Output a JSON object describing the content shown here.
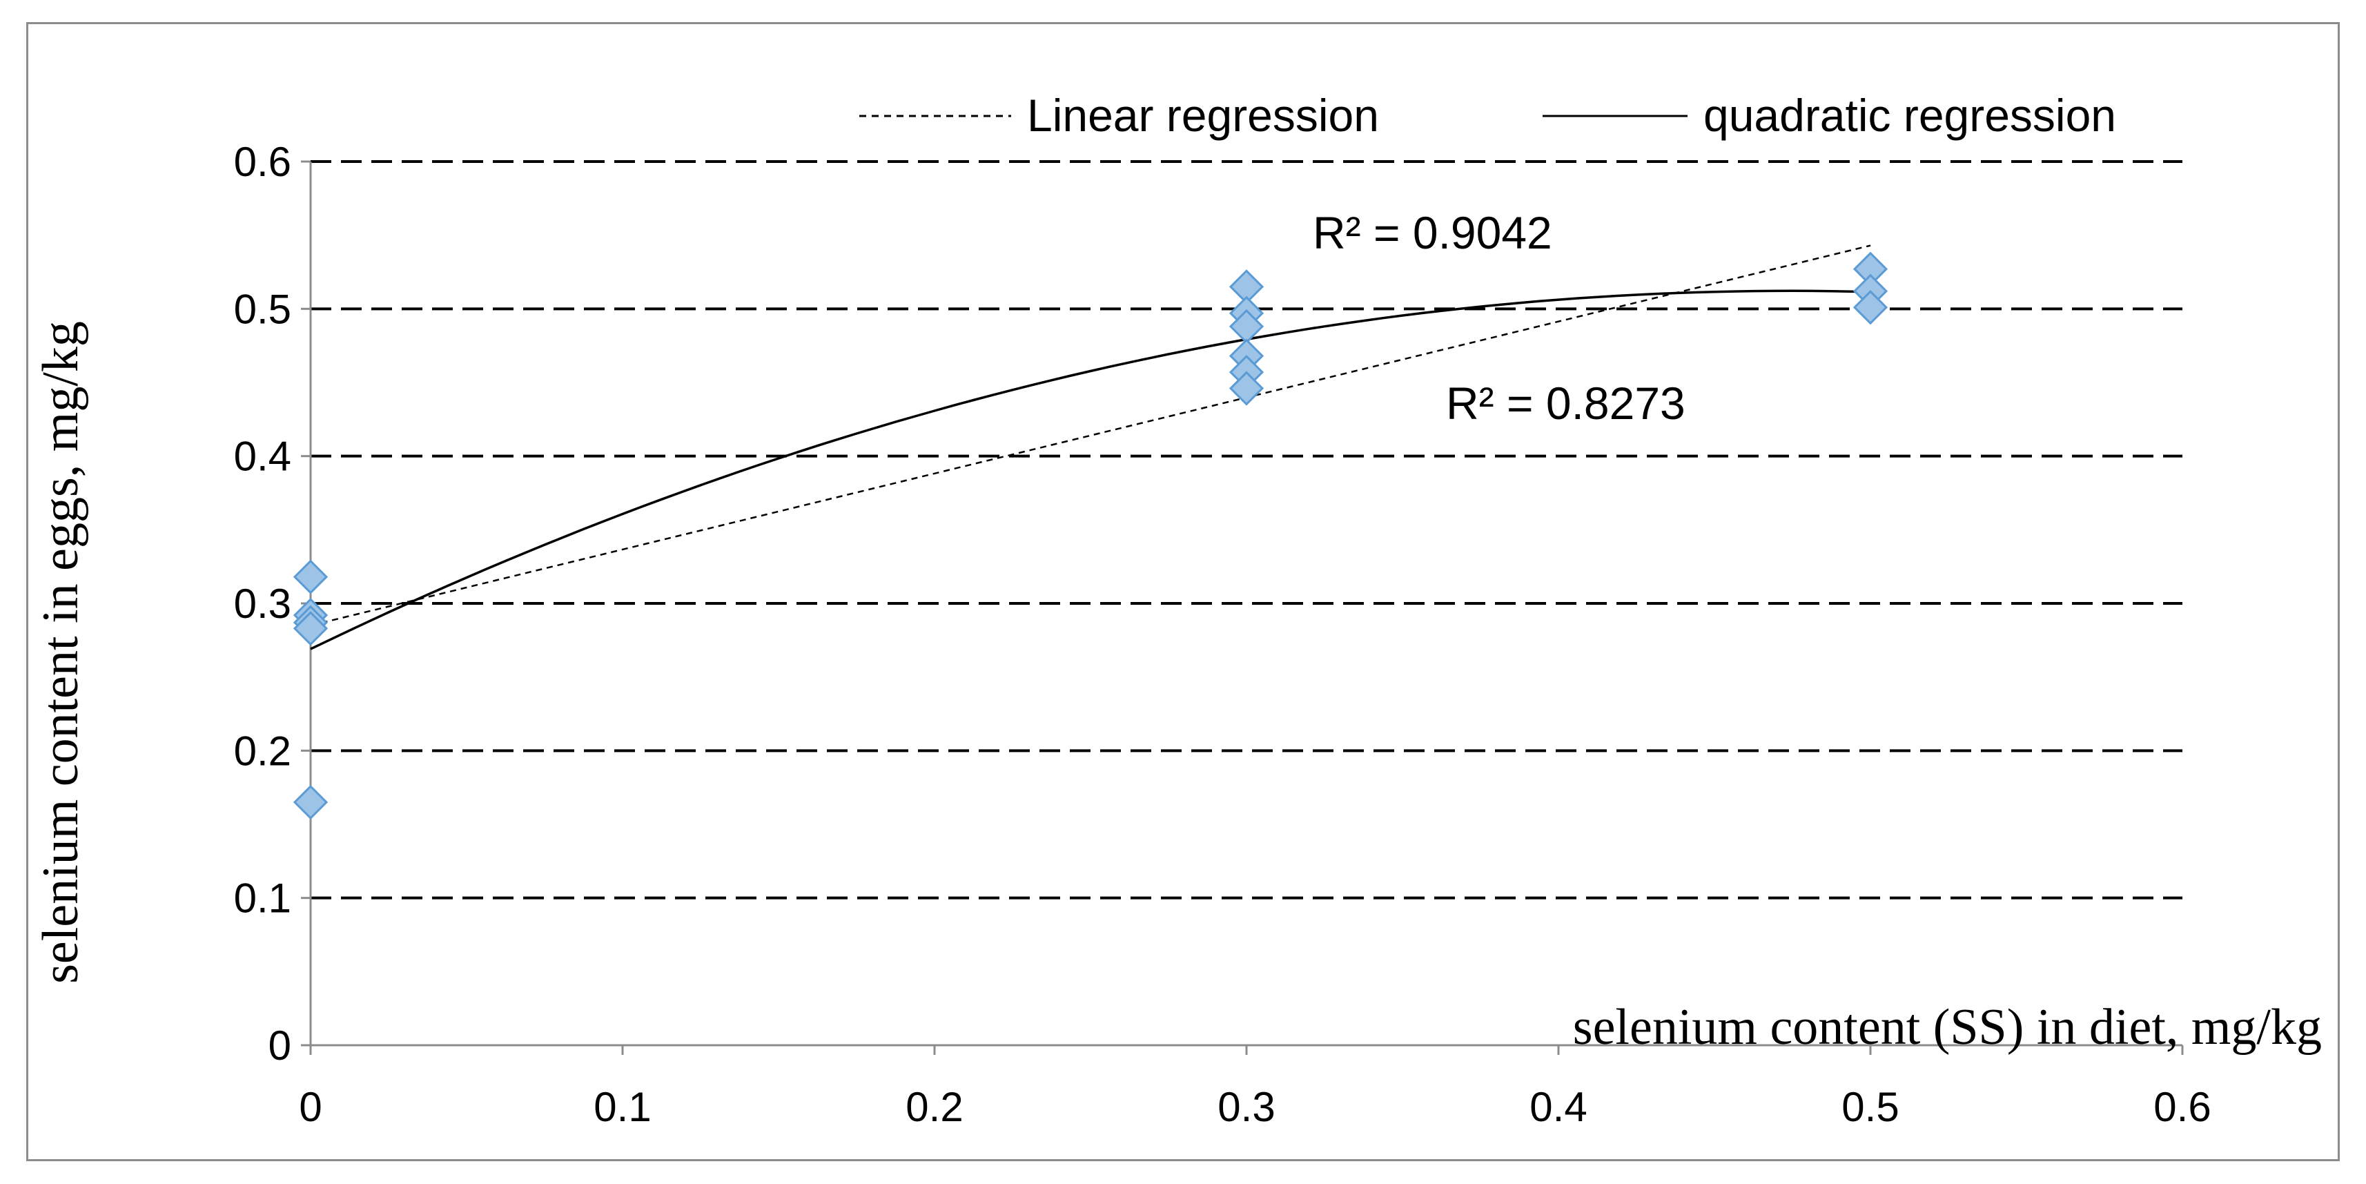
{
  "chart_data": {
    "type": "scatter",
    "title": "",
    "xlabel": "selenium content (SS) in diet, mg/kg",
    "ylabel": "selenium content in eggs, mg/kg",
    "xlim": [
      0,
      0.6
    ],
    "ylim": [
      0,
      0.6
    ],
    "x_ticks": [
      "0",
      "0.1",
      "0.2",
      "0.3",
      "0.4",
      "0.5",
      "0.6"
    ],
    "y_ticks": [
      "0",
      "0.1",
      "0.2",
      "0.3",
      "0.4",
      "0.5",
      "0.6"
    ],
    "grid": "horizontal dashed",
    "legend_position": "top-right",
    "marker_color": "#9dc3e6",
    "marker_edge_color": "#5b9bd5",
    "series": [
      {
        "points": [
          {
            "x": 0,
            "y": 0.318
          },
          {
            "x": 0,
            "y": 0.292
          },
          {
            "x": 0,
            "y": 0.287
          },
          {
            "x": 0,
            "y": 0.283
          },
          {
            "x": 0,
            "y": 0.165
          },
          {
            "x": 0.3,
            "y": 0.515
          },
          {
            "x": 0.3,
            "y": 0.497
          },
          {
            "x": 0.3,
            "y": 0.488
          },
          {
            "x": 0.3,
            "y": 0.468
          },
          {
            "x": 0.3,
            "y": 0.457
          },
          {
            "x": 0.3,
            "y": 0.446
          },
          {
            "x": 0.5,
            "y": 0.527
          },
          {
            "x": 0.5,
            "y": 0.512
          },
          {
            "x": 0.5,
            "y": 0.501
          }
        ]
      }
    ],
    "trendlines": [
      {
        "name": "Linear regression",
        "style": "dashed",
        "points": [
          [
            0,
            0.285
          ],
          [
            0.5,
            0.543
          ]
        ]
      },
      {
        "name": "quadratic regression",
        "style": "solid",
        "coefficients": [
          0.269,
          1.025,
          -1.08
        ],
        "x_range": [
          0,
          0.5
        ]
      }
    ],
    "annotations": [
      "R² = 0.9042",
      "R² = 0.8273"
    ]
  }
}
